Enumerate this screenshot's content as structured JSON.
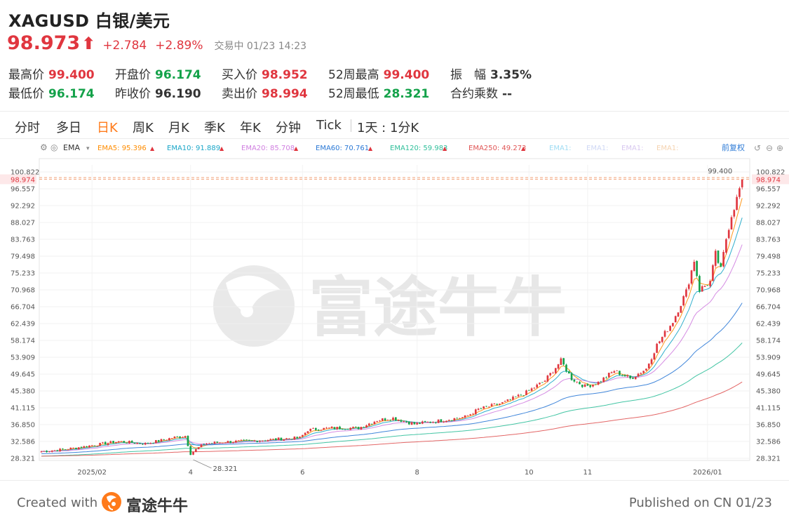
{
  "header": {
    "title": "XAGUSD 白银/美元",
    "price": "98.973",
    "change": "+2.784",
    "change_pct": "+2.89%",
    "status": "交易中 01/23 14:23"
  },
  "stats": [
    {
      "label": "最高价",
      "value": "99.400",
      "color": "red"
    },
    {
      "label": "开盘价",
      "value": "96.174",
      "color": "green"
    },
    {
      "label": "买入价",
      "value": "98.952",
      "color": "red"
    },
    {
      "label": "52周最高",
      "value": "99.400",
      "color": "red"
    },
    {
      "label": "振　幅",
      "value": "3.35%",
      "color": "dark"
    },
    {
      "label": "最低价",
      "value": "96.174",
      "color": "green"
    },
    {
      "label": "昨收价",
      "value": "96.190",
      "color": "dark"
    },
    {
      "label": "卖出价",
      "value": "98.994",
      "color": "red"
    },
    {
      "label": "52周最低",
      "value": "28.321",
      "color": "green"
    },
    {
      "label": "合约乘数",
      "value": "--",
      "color": "dark"
    }
  ],
  "tabs": [
    "分时",
    "多日",
    "日K",
    "周K",
    "月K",
    "季K",
    "年K",
    "分钟",
    "Tick",
    "1天 : 1分K"
  ],
  "active_tab": "日K",
  "watermark": "富途牛牛",
  "footer": {
    "created": "Created with",
    "brand": "富途牛牛",
    "published": "Published on CN 01/23"
  },
  "chart_data": {
    "type": "candlestick",
    "indicator": "EMA",
    "adjust_label": "前复权",
    "indicators": [
      {
        "name": "EMA5",
        "value": "95.396",
        "color": "#ff8c00"
      },
      {
        "name": "EMA10",
        "value": "91.889",
        "color": "#1aa6c8"
      },
      {
        "name": "EMA20",
        "value": "85.708",
        "color": "#d07fe0"
      },
      {
        "name": "EMA60",
        "value": "70.761",
        "color": "#2b79d6"
      },
      {
        "name": "EMA120",
        "value": "59.983",
        "color": "#2fbf9a"
      },
      {
        "name": "EMA250",
        "value": "49.273",
        "color": "#e05555"
      }
    ],
    "faded_labels": [
      "EMA1:",
      "EMA1:",
      "EMA1:",
      "EMA1:"
    ],
    "y_ticks": [
      "100.822",
      "96.557",
      "92.292",
      "88.027",
      "83.763",
      "79.498",
      "75.233",
      "70.968",
      "66.704",
      "62.439",
      "58.174",
      "53.909",
      "49.645",
      "45.380",
      "41.115",
      "36.850",
      "32.586",
      "28.321"
    ],
    "ylim": [
      28.321,
      100.822
    ],
    "x_ticks": [
      {
        "label": "2025/02",
        "index": 19
      },
      {
        "label": "4",
        "index": 56
      },
      {
        "label": "6",
        "index": 98
      },
      {
        "label": "8",
        "index": 141
      },
      {
        "label": "10",
        "index": 183
      },
      {
        "label": "11",
        "index": 205
      },
      {
        "label": "2026/01",
        "index": 250
      }
    ],
    "n_candles": 264,
    "current_price": "98.974",
    "high_marker": {
      "label": "99.400",
      "value": 99.4
    },
    "low_marker": {
      "label": "28.321",
      "value": 28.321,
      "index": 57
    },
    "price_path": [
      [
        0,
        30.0
      ],
      [
        10,
        30.6
      ],
      [
        19,
        31.5
      ],
      [
        30,
        32.6
      ],
      [
        40,
        32.0
      ],
      [
        50,
        33.5
      ],
      [
        55,
        34.0
      ],
      [
        57,
        29.5
      ],
      [
        62,
        32.0
      ],
      [
        70,
        32.5
      ],
      [
        80,
        32.7
      ],
      [
        90,
        33.2
      ],
      [
        98,
        33.5
      ],
      [
        101,
        35.5
      ],
      [
        110,
        36.0
      ],
      [
        120,
        36.0
      ],
      [
        127,
        38.0
      ],
      [
        133,
        38.5
      ],
      [
        141,
        37.0
      ],
      [
        150,
        37.8
      ],
      [
        160,
        38.8
      ],
      [
        165,
        40.7
      ],
      [
        175,
        42.5
      ],
      [
        183,
        45.0
      ],
      [
        190,
        48.0
      ],
      [
        196,
        53.0
      ],
      [
        200,
        48.5
      ],
      [
        205,
        46.5
      ],
      [
        210,
        47.5
      ],
      [
        216,
        50.5
      ],
      [
        222,
        48.5
      ],
      [
        228,
        51.0
      ],
      [
        232,
        57.0
      ],
      [
        238,
        63.0
      ],
      [
        243,
        70.5
      ],
      [
        246,
        78.5
      ],
      [
        248,
        71.0
      ],
      [
        252,
        73.0
      ],
      [
        254,
        80.0
      ],
      [
        256,
        76.0
      ],
      [
        258,
        84.0
      ],
      [
        260,
        90.0
      ],
      [
        262,
        94.0
      ],
      [
        264,
        98.97
      ]
    ]
  }
}
